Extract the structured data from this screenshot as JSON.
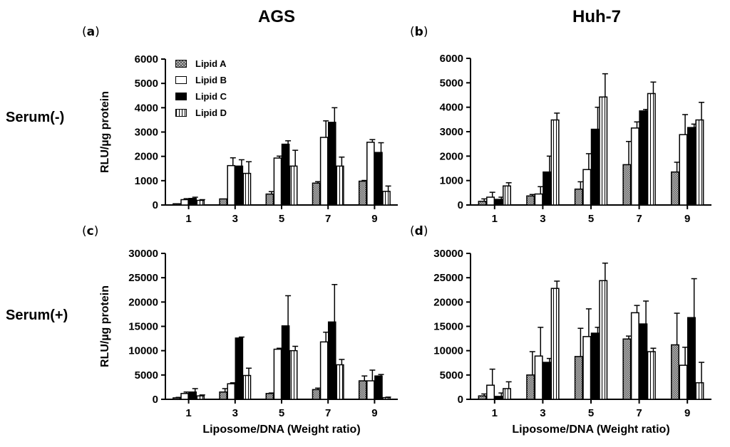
{
  "headers": {
    "left": "AGS",
    "right": "Huh-7"
  },
  "row_labels": {
    "top": "Serum(-)",
    "bottom": "Serum(+)"
  },
  "panel_labels": {
    "a": "a",
    "b": "b",
    "c": "c",
    "d": "d"
  },
  "legend": [
    {
      "label": "Lipid A",
      "color": "#9a9a9a"
    },
    {
      "label": "Lipid B",
      "color": "#ffffff"
    },
    {
      "label": "Lipid C",
      "color": "#000000"
    },
    {
      "label": "Lipid D",
      "color": "#ffffff"
    }
  ],
  "chart_data": [
    {
      "id": "a",
      "type": "bar",
      "title": "AGS",
      "xlabel": "",
      "ylabel": "RLU/µg protein",
      "categories": [
        "1",
        "3",
        "5",
        "7",
        "9"
      ],
      "ylim": [
        0,
        6000
      ],
      "yticks": [
        0,
        1000,
        2000,
        3000,
        4000,
        5000,
        6000
      ],
      "series": [
        {
          "name": "Lipid A",
          "values": [
            50,
            250,
            450,
            900,
            980
          ],
          "errors": [
            0,
            0,
            100,
            60,
            30
          ]
        },
        {
          "name": "Lipid B",
          "values": [
            220,
            1620,
            1930,
            2780,
            2580
          ],
          "errors": [
            40,
            320,
            80,
            680,
            110
          ]
        },
        {
          "name": "Lipid C",
          "values": [
            270,
            1600,
            2500,
            3400,
            2160
          ],
          "errors": [
            50,
            260,
            140,
            600,
            400
          ]
        },
        {
          "name": "Lipid D",
          "values": [
            190,
            1300,
            1600,
            1600,
            560
          ],
          "errors": [
            30,
            480,
            650,
            370,
            220
          ]
        }
      ]
    },
    {
      "id": "b",
      "type": "bar",
      "title": "Huh-7",
      "xlabel": "",
      "ylabel": "",
      "categories": [
        "1",
        "3",
        "5",
        "7",
        "9"
      ],
      "ylim": [
        0,
        6000
      ],
      "yticks": [
        0,
        1000,
        2000,
        3000,
        4000,
        5000,
        6000
      ],
      "series": [
        {
          "name": "Lipid A",
          "values": [
            150,
            370,
            650,
            1650,
            1350
          ],
          "errors": [
            100,
            60,
            300,
            950,
            400
          ]
        },
        {
          "name": "Lipid B",
          "values": [
            320,
            450,
            1450,
            3150,
            2880
          ],
          "errors": [
            200,
            300,
            650,
            250,
            820
          ]
        },
        {
          "name": "Lipid C",
          "values": [
            230,
            1350,
            3100,
            3850,
            3170
          ],
          "errors": [
            90,
            650,
            900,
            60,
            140
          ]
        },
        {
          "name": "Lipid D",
          "values": [
            780,
            3480,
            4420,
            4560,
            3480
          ],
          "errors": [
            130,
            280,
            950,
            470,
            720
          ]
        }
      ]
    },
    {
      "id": "c",
      "type": "bar",
      "title": "",
      "xlabel": "Liposome/DNA (Weight ratio)",
      "ylabel": "RLU/µg protein",
      "categories": [
        "1",
        "3",
        "5",
        "7",
        "9"
      ],
      "ylim": [
        0,
        30000
      ],
      "yticks": [
        0,
        5000,
        10000,
        15000,
        20000,
        25000,
        30000
      ],
      "series": [
        {
          "name": "Lipid A",
          "values": [
            300,
            1500,
            1200,
            2000,
            3800
          ],
          "errors": [
            100,
            700,
            100,
            300,
            1000
          ]
        },
        {
          "name": "Lipid B",
          "values": [
            1200,
            3200,
            10300,
            11800,
            3800
          ],
          "errors": [
            300,
            200,
            200,
            2000,
            2200
          ]
        },
        {
          "name": "Lipid C",
          "values": [
            1500,
            12600,
            15100,
            15900,
            4800
          ],
          "errors": [
            700,
            200,
            6200,
            7700,
            300
          ]
        },
        {
          "name": "Lipid D",
          "values": [
            700,
            4900,
            10000,
            7100,
            350
          ],
          "errors": [
            200,
            1500,
            900,
            1100,
            100
          ]
        }
      ]
    },
    {
      "id": "d",
      "type": "bar",
      "title": "",
      "xlabel": "Liposome/DNA (Weight ratio)",
      "ylabel": "",
      "categories": [
        "1",
        "3",
        "5",
        "7",
        "9"
      ],
      "ylim": [
        0,
        30000
      ],
      "yticks": [
        0,
        5000,
        10000,
        15000,
        20000,
        25000,
        30000
      ],
      "series": [
        {
          "name": "Lipid A",
          "values": [
            700,
            5000,
            8800,
            12400,
            11200
          ],
          "errors": [
            400,
            4800,
            5800,
            600,
            6500
          ]
        },
        {
          "name": "Lipid B",
          "values": [
            2900,
            8900,
            12900,
            17800,
            7000
          ],
          "errors": [
            3300,
            5900,
            5700,
            1500,
            3700
          ]
        },
        {
          "name": "Lipid C",
          "values": [
            600,
            7600,
            13600,
            15500,
            16800
          ],
          "errors": [
            700,
            800,
            1200,
            4700,
            8000
          ]
        },
        {
          "name": "Lipid D",
          "values": [
            2200,
            22800,
            24400,
            9800,
            3400
          ],
          "errors": [
            1400,
            1500,
            3600,
            700,
            4200
          ]
        }
      ]
    }
  ]
}
